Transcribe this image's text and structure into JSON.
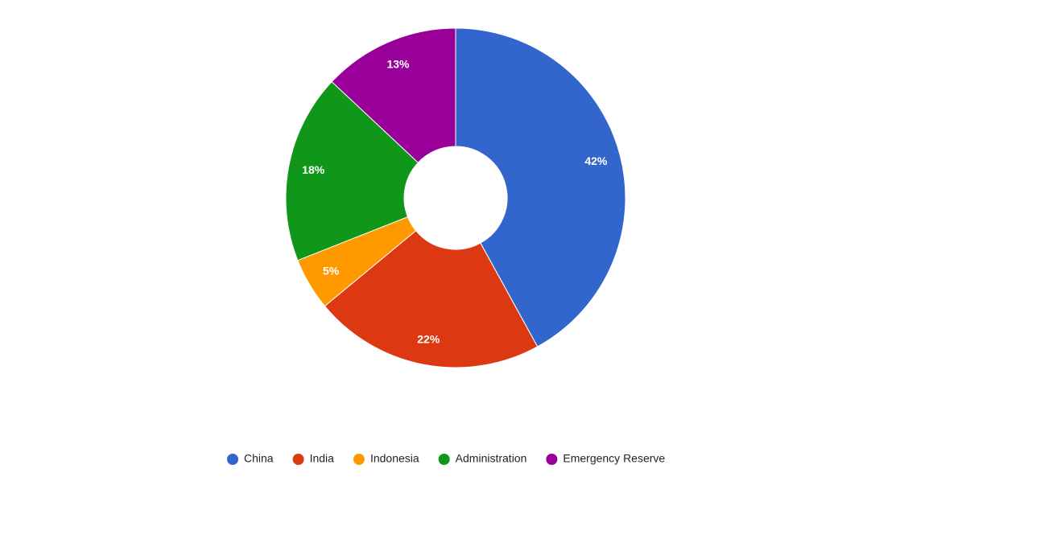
{
  "chart_data": {
    "type": "donut",
    "categories": [
      "China",
      "India",
      "Indonesia",
      "Administration",
      "Emergency Reserve"
    ],
    "values": [
      42,
      22,
      5,
      18,
      13
    ],
    "value_labels": [
      "42%",
      "22%",
      "5%",
      "18%",
      "13%"
    ],
    "colors": [
      "#3366cc",
      "#dc3912",
      "#ff9900",
      "#109618",
      "#990099"
    ],
    "legend": "bottom"
  }
}
